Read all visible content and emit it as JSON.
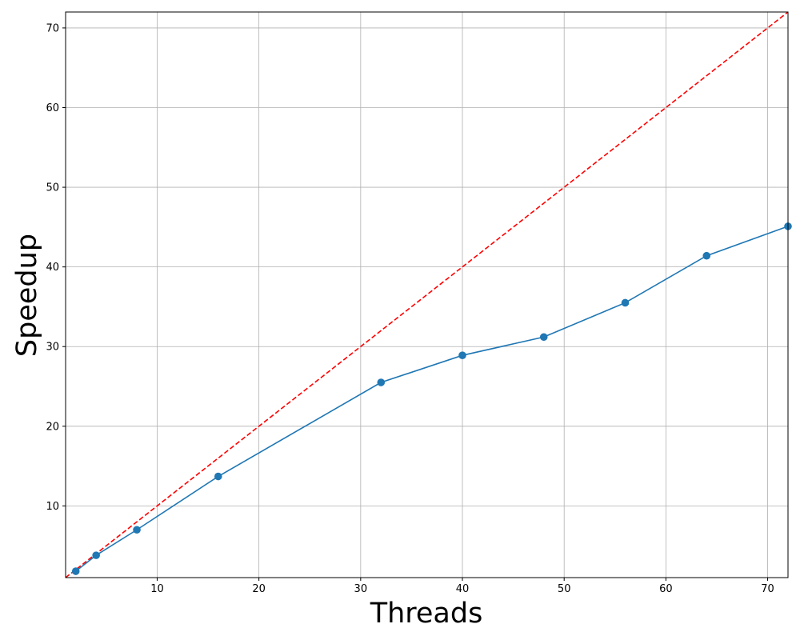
{
  "chart_data": {
    "type": "line",
    "title": "",
    "xlabel": "Threads",
    "ylabel": "Speedup",
    "xlim": [
      1,
      72
    ],
    "ylim": [
      1,
      72
    ],
    "xticks": [
      10,
      20,
      30,
      40,
      50,
      60,
      70
    ],
    "yticks": [
      10,
      20,
      30,
      40,
      50,
      60,
      70
    ],
    "grid": true,
    "series": [
      {
        "color": "#1f77b4",
        "style": "solid",
        "marker": "circle",
        "x": [
          2,
          4,
          8,
          16,
          32,
          40,
          48,
          56,
          64,
          72
        ],
        "y": [
          1.8,
          3.8,
          7.0,
          13.7,
          25.5,
          28.9,
          31.2,
          35.5,
          41.4,
          45.1
        ]
      },
      {
        "color": "#ff0000",
        "style": "dashed",
        "marker": "none",
        "x": [
          1,
          72
        ],
        "y": [
          1,
          72
        ]
      }
    ]
  }
}
